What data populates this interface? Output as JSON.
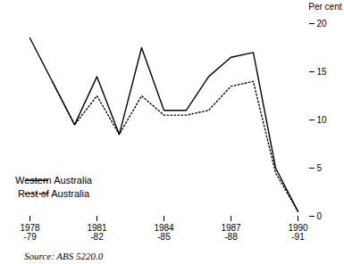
{
  "chart_data": {
    "type": "line",
    "categories": [
      "1978\n-79",
      null,
      null,
      "1981\n-82",
      null,
      null,
      "1984\n-85",
      null,
      null,
      "1987\n-88",
      null,
      null,
      "1990\n-91"
    ],
    "series": [
      {
        "name": "Western Australia",
        "color": "#000000",
        "line_style": "solid",
        "values": [
          18.5,
          14.0,
          9.5,
          14.5,
          8.5,
          17.5,
          11.0,
          11.0,
          14.5,
          16.5,
          17.0,
          5.0,
          0.5
        ]
      },
      {
        "name": "Rest of Australia",
        "color": "#000000",
        "line_style": "dotted",
        "values": [
          null,
          14.0,
          9.5,
          12.5,
          8.5,
          12.5,
          10.5,
          10.5,
          11.0,
          13.5,
          14.0,
          4.5,
          0.5
        ]
      }
    ],
    "ylabel": "Per cent",
    "ylim": [
      0,
      20
    ],
    "yticks": [
      0,
      5,
      10,
      15,
      20
    ],
    "grid": false,
    "legend": "lower left",
    "caption": "Source: ABS 5220.0"
  }
}
